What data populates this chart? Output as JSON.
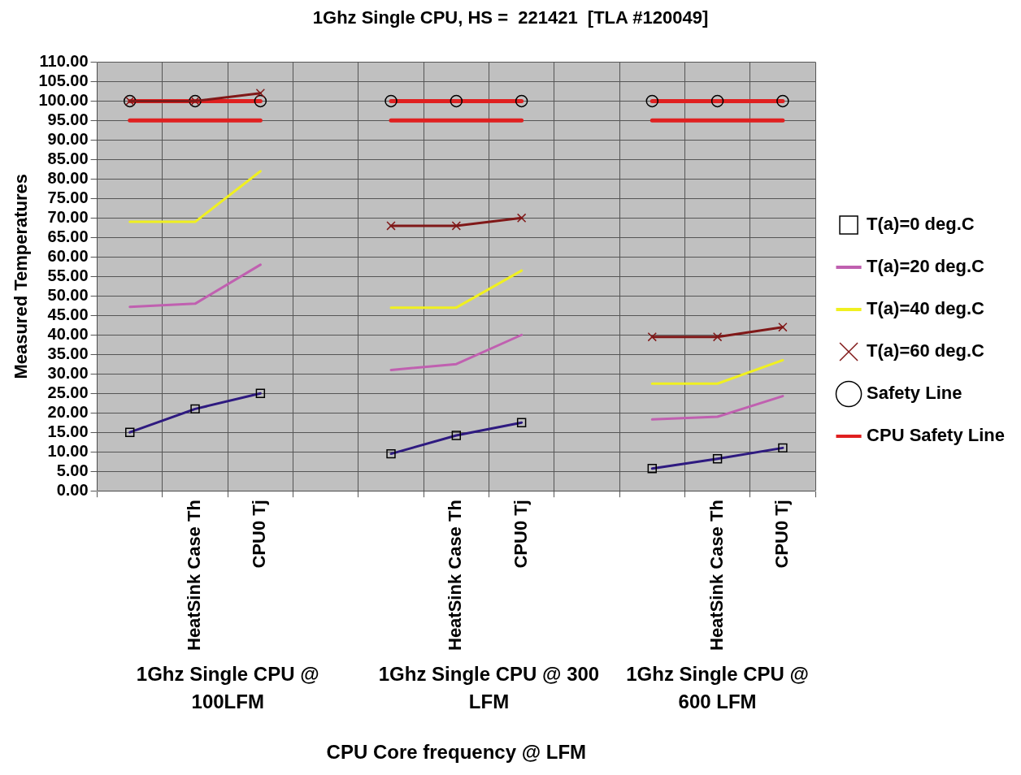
{
  "chart_data": {
    "type": "line",
    "title": "1Ghz Single CPU, HS =  221421  [TLA #120049]",
    "xlabel": "CPU Core frequency @ LFM",
    "ylabel": "Measured Temperatures",
    "categories": [
      null,
      "HeatSink Case Th",
      "CPU0 Tj",
      null,
      null,
      "HeatSink Case Th",
      "CPU0 Tj",
      null,
      null,
      "HeatSink Case Th",
      "CPU0 Tj"
    ],
    "annotations": [
      "1Ghz Single CPU @ 100LFM",
      "1Ghz Single CPU @ 300 LFM",
      "1Ghz Single CPU @ 600 LFM"
    ],
    "series": [
      {
        "name": "T(a)=0 deg.C",
        "color": "#2e1a80",
        "marker": "square",
        "values": [
          15,
          21,
          25,
          null,
          9.5,
          14.2,
          17.5,
          null,
          5.7,
          8.2,
          11
        ]
      },
      {
        "name": "T(a)=20 deg.C",
        "color": "#c060b0",
        "values": [
          47.2,
          48,
          58,
          null,
          31,
          32.5,
          40,
          null,
          18.3,
          19,
          24.3
        ]
      },
      {
        "name": "T(a)=40 deg.C",
        "color": "#f0f020",
        "values": [
          69,
          69,
          82,
          null,
          47,
          47,
          56.5,
          null,
          27.5,
          27.5,
          33.5
        ]
      },
      {
        "name": "T(a)=60 deg.C",
        "color": "#801818",
        "marker": "cross",
        "values": [
          100,
          100,
          102,
          null,
          68,
          68,
          70,
          null,
          39.5,
          39.5,
          42
        ]
      },
      {
        "name": "Safety Line",
        "color": "#e02020",
        "marker": "circle",
        "values": [
          100,
          100,
          100,
          null,
          100,
          100,
          100,
          null,
          100,
          100,
          100
        ]
      },
      {
        "name": "CPU Safety Line",
        "color": "#e02020",
        "values": [
          95,
          95,
          95,
          null,
          95,
          95,
          95,
          null,
          95,
          95,
          95
        ]
      }
    ],
    "ylim": [
      0,
      110
    ],
    "yticks": [
      {
        "value": 0,
        "label": "0.00"
      },
      {
        "value": 5,
        "label": "5.00"
      },
      {
        "value": 10,
        "label": "10.00"
      },
      {
        "value": 15,
        "label": "15.00"
      },
      {
        "value": 20,
        "label": "20.00"
      },
      {
        "value": 25,
        "label": "25.00"
      },
      {
        "value": 30,
        "label": "30.00"
      },
      {
        "value": 35,
        "label": "35.00"
      },
      {
        "value": 40,
        "label": "40.00"
      },
      {
        "value": 45,
        "label": "45.00"
      },
      {
        "value": 50,
        "label": "50.00"
      },
      {
        "value": 55,
        "label": "55.00"
      },
      {
        "value": 60,
        "label": "60.00"
      },
      {
        "value": 65,
        "label": "65.00"
      },
      {
        "value": 70,
        "label": "70.00"
      },
      {
        "value": 75,
        "label": "75.00"
      },
      {
        "value": 80,
        "label": "80.00"
      },
      {
        "value": 85,
        "label": "85.00"
      },
      {
        "value": 90,
        "label": "90.00"
      },
      {
        "value": 95,
        "label": "95.00"
      },
      {
        "value": 100,
        "label": "100.00"
      },
      {
        "value": 105,
        "label": "105.00"
      },
      {
        "value": 110,
        "label": "110.00"
      }
    ],
    "grid": true,
    "legend": "right"
  }
}
